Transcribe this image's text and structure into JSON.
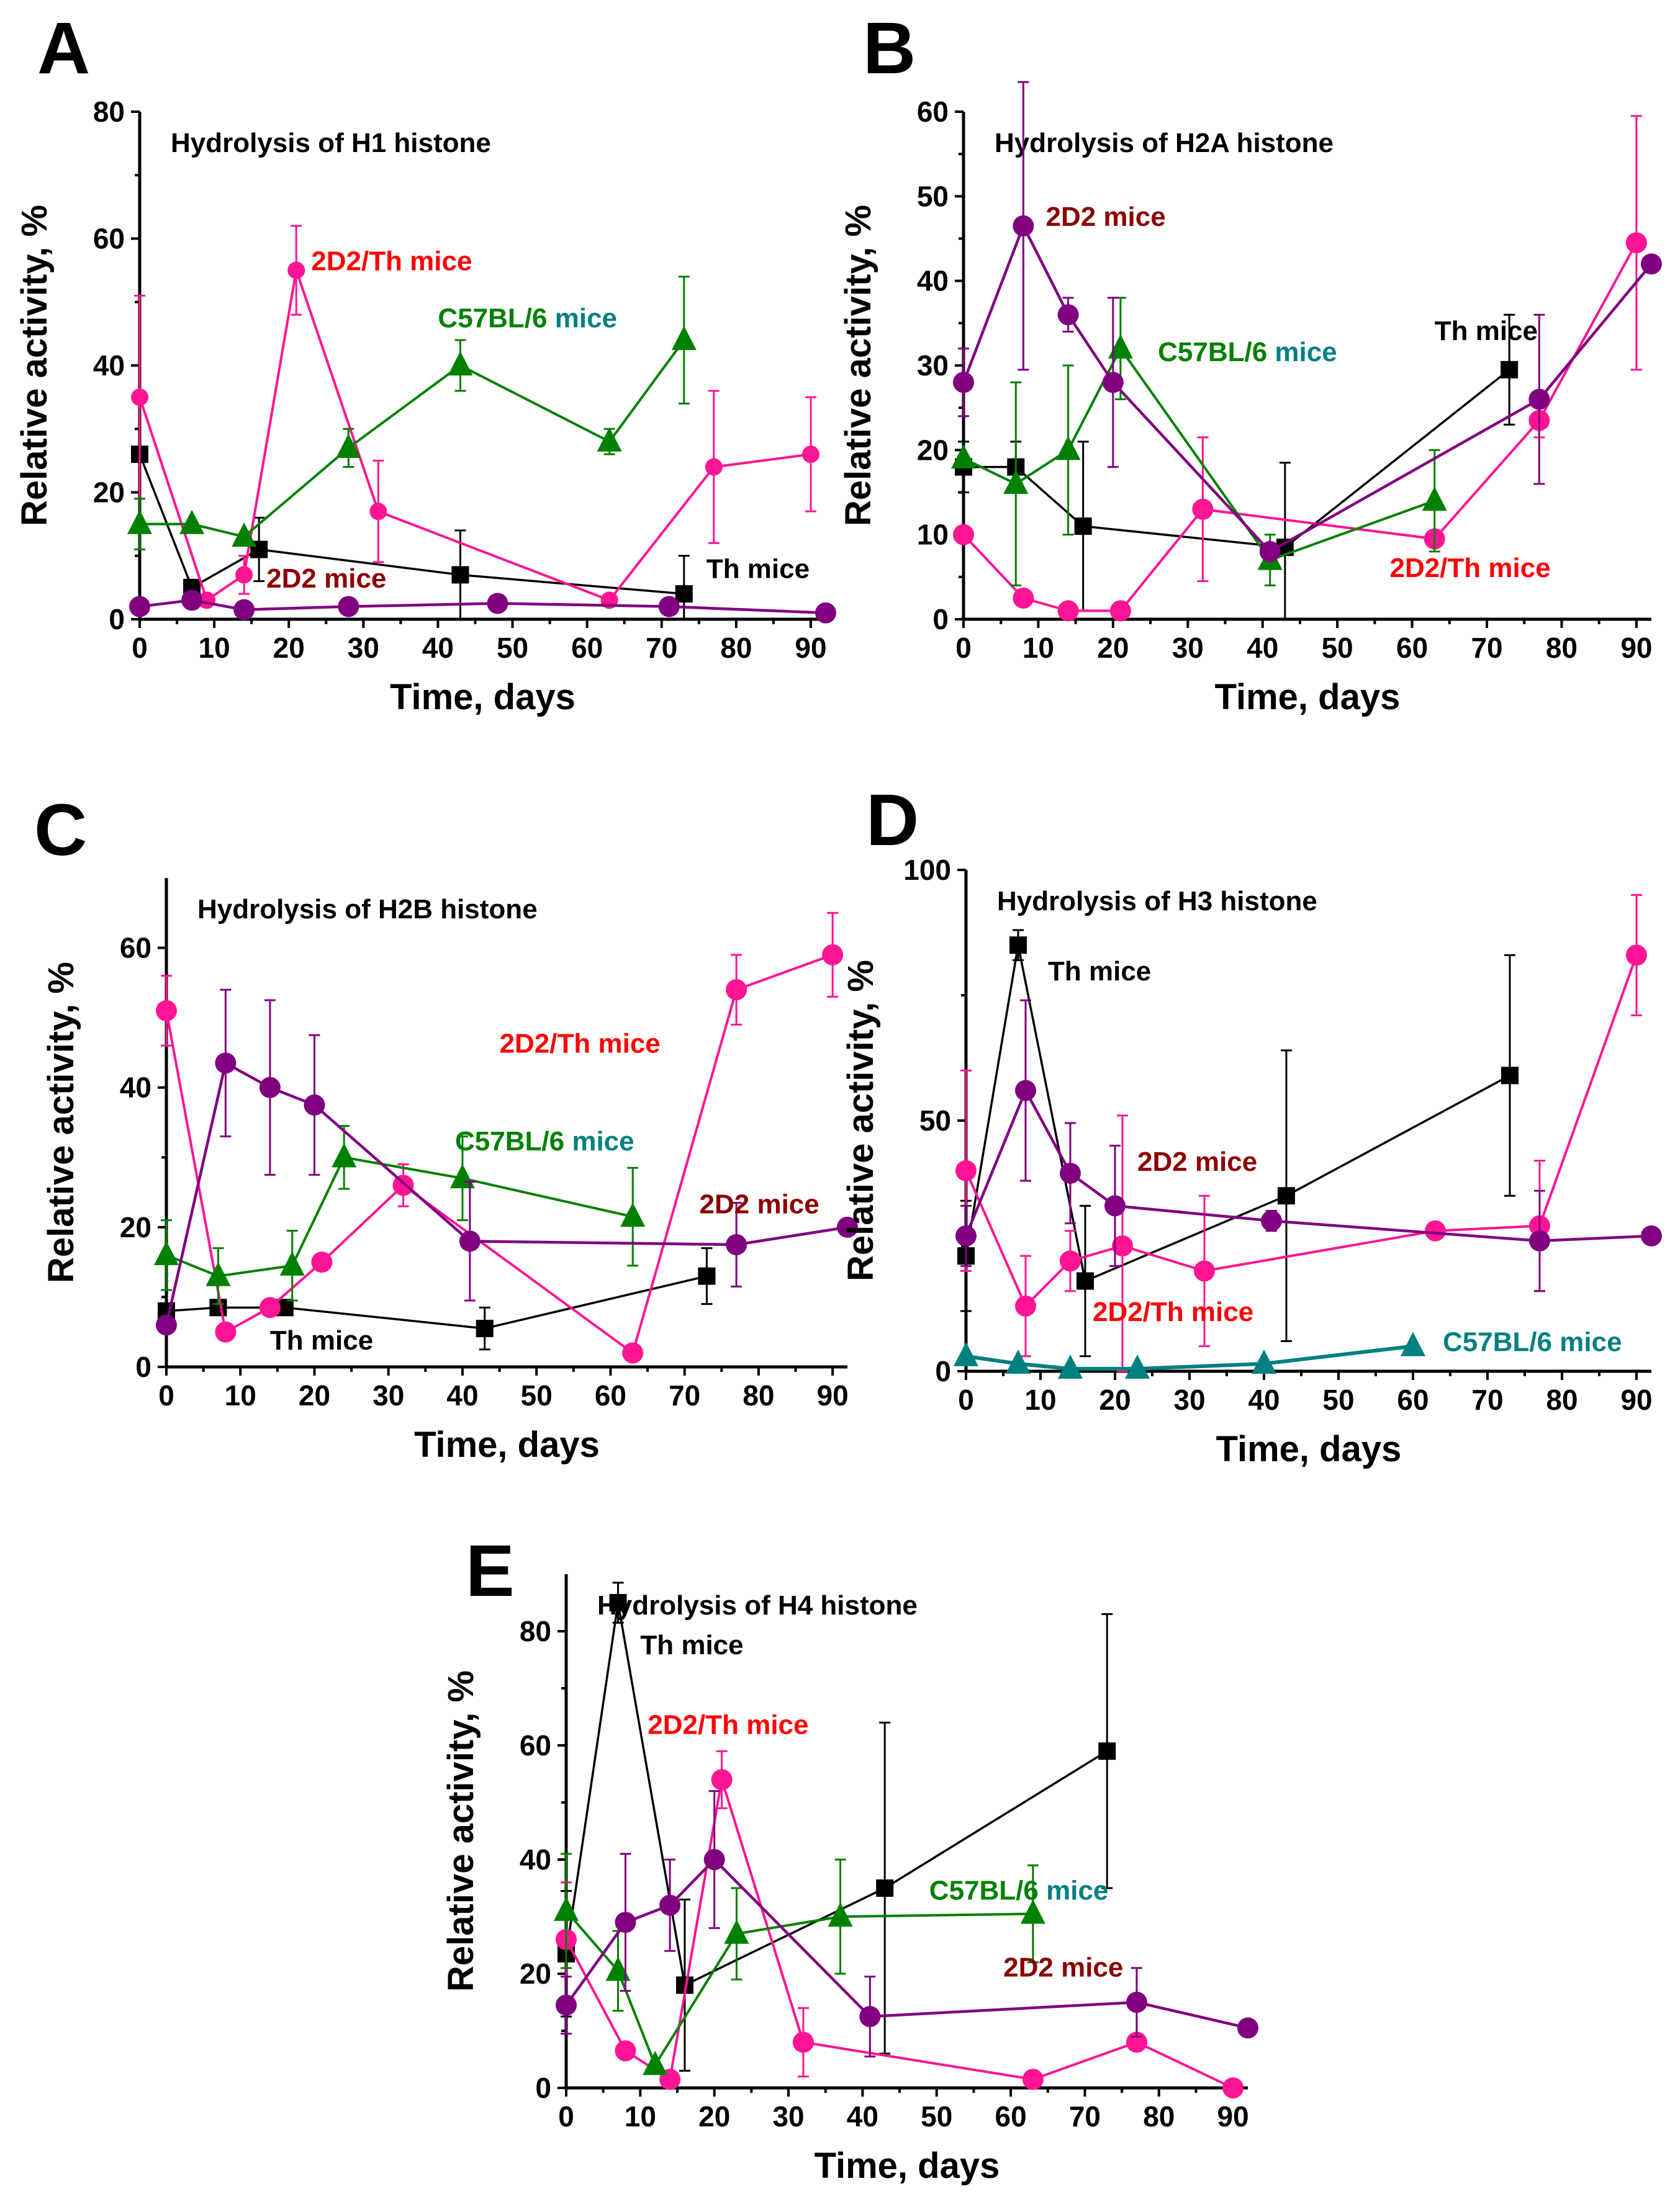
{
  "colors": {
    "th": "#000000",
    "d2th": "#ff1493",
    "d2": "#800080",
    "c57": "#008000",
    "c57_teal": "#008080",
    "label_2d2": "#8b0000",
    "label_2d2th": "#ff0000"
  },
  "chart_data": [
    {
      "type": "line",
      "panel": "A",
      "title": "Hydrolysis of H1 histone",
      "xlabel": "Time, days",
      "ylabel": "Relative activity, %",
      "xlim": [
        0,
        92
      ],
      "ylim": [
        0,
        80
      ],
      "xticks": [
        0,
        10,
        20,
        30,
        40,
        50,
        60,
        70,
        80,
        90
      ],
      "yticks": [
        0,
        20,
        40,
        60,
        80
      ],
      "series": [
        {
          "name": "Th mice",
          "key": "th",
          "marker": "square",
          "x": [
            0,
            7,
            16,
            43,
            73
          ],
          "y": [
            26,
            5,
            11,
            7,
            4
          ],
          "err": [
            0,
            0,
            5,
            7,
            6
          ]
        },
        {
          "name": "2D2/Th mice",
          "key": "d2th",
          "marker": "circle-small",
          "x": [
            0,
            9,
            14,
            21,
            32,
            63,
            77,
            90
          ],
          "y": [
            35,
            3,
            7,
            55,
            17,
            3,
            24,
            26
          ],
          "err": [
            16,
            0,
            3,
            7,
            8,
            0,
            12,
            9
          ]
        },
        {
          "name": "C57BL/6 mice",
          "key": "c57",
          "marker": "triangle",
          "x": [
            0,
            7,
            14,
            28,
            43,
            63,
            73
          ],
          "y": [
            15,
            15,
            13,
            27,
            40,
            28,
            44
          ],
          "err": [
            4,
            0,
            0,
            3,
            4,
            2,
            10
          ]
        },
        {
          "name": "2D2 mice",
          "key": "d2",
          "marker": "circle",
          "x": [
            0,
            7,
            14,
            28,
            48,
            71,
            92
          ],
          "y": [
            2,
            3,
            1.5,
            2,
            2.5,
            2,
            1
          ],
          "err": [
            0,
            0,
            0,
            0,
            0,
            0,
            0
          ]
        }
      ],
      "labels": [
        {
          "text": "2D2/Th mice",
          "key": "label_2d2th",
          "x": 23,
          "y": 55
        },
        {
          "text": "C57BL/6",
          "key": "c57",
          "x": 40,
          "y": 46,
          "extra": " mice",
          "extra_key": "c57_teal"
        },
        {
          "text": "2D2 mice",
          "key": "label_2d2",
          "x": 17,
          "y": 5
        },
        {
          "text": "Th mice",
          "key": "th",
          "x": 76,
          "y": 6.5
        }
      ]
    },
    {
      "type": "line",
      "panel": "B",
      "title": "Hydrolysis of H2A histone",
      "xlabel": "Time, days",
      "ylabel": "Relative activity, %",
      "xlim": [
        0,
        92
      ],
      "ylim": [
        0,
        60
      ],
      "xticks": [
        0,
        10,
        20,
        30,
        40,
        50,
        60,
        70,
        80,
        90
      ],
      "yticks": [
        0,
        10,
        20,
        30,
        40,
        50,
        60
      ],
      "series": [
        {
          "name": "Th mice",
          "key": "th",
          "marker": "square",
          "x": [
            0,
            7,
            16,
            43,
            73
          ],
          "y": [
            18,
            18,
            11,
            8.5,
            29.5
          ],
          "err": [
            3,
            3,
            10,
            10,
            6.5
          ]
        },
        {
          "name": "2D2/Th mice",
          "key": "d2th",
          "marker": "circle",
          "x": [
            0,
            8,
            14,
            21,
            32,
            63,
            77,
            90
          ],
          "y": [
            10,
            2.5,
            1,
            1,
            13,
            9.5,
            23.5,
            44.5
          ],
          "err": [
            0,
            0,
            0,
            0,
            8.5,
            0,
            2,
            15
          ]
        },
        {
          "name": "C57BL/6 mice",
          "key": "c57",
          "marker": "triangle",
          "x": [
            0,
            7,
            14,
            21,
            41,
            63
          ],
          "y": [
            19,
            16,
            20,
            32,
            7,
            14
          ],
          "err": [
            0,
            12,
            10,
            6,
            3,
            6
          ]
        },
        {
          "name": "2D2 mice",
          "key": "d2",
          "marker": "circle",
          "x": [
            0,
            8,
            14,
            20,
            41,
            77,
            92
          ],
          "y": [
            28,
            46.5,
            36,
            28,
            8,
            26,
            42
          ],
          "err": [
            4,
            17,
            2,
            10,
            0,
            10,
            0
          ]
        }
      ],
      "labels": [
        {
          "text": "2D2 mice",
          "key": "label_2d2",
          "x": 11,
          "y": 46.5
        },
        {
          "text": "Th mice",
          "key": "th",
          "x": 63,
          "y": 33
        },
        {
          "text": "C57BL/6",
          "key": "c57",
          "x": 26,
          "y": 30.5,
          "extra": " mice",
          "extra_key": "c57_teal"
        },
        {
          "text": "2D2/Th mice",
          "key": "label_2d2th",
          "x": 57,
          "y": 5
        }
      ]
    },
    {
      "type": "line",
      "panel": "C",
      "title": "Hydrolysis of H2B histone",
      "xlabel": "Time, days",
      "ylabel": "Relative activity, %",
      "xlim": [
        0,
        92
      ],
      "ylim": [
        0,
        70
      ],
      "xticks": [
        0,
        10,
        20,
        30,
        40,
        50,
        60,
        70,
        80,
        90
      ],
      "yticks": [
        0,
        20,
        40,
        60
      ],
      "series": [
        {
          "name": "Th mice",
          "key": "th",
          "marker": "square",
          "x": [
            0,
            7,
            16,
            43,
            73
          ],
          "y": [
            8,
            8.5,
            8.5,
            5.5,
            13
          ],
          "err": [
            0,
            0,
            0,
            3,
            4
          ]
        },
        {
          "name": "2D2/Th mice",
          "key": "d2th",
          "marker": "circle",
          "x": [
            0,
            8,
            14,
            21,
            32,
            63,
            77,
            90
          ],
          "y": [
            51,
            5,
            8.5,
            15,
            26,
            2,
            54,
            59
          ],
          "err": [
            5,
            0,
            0,
            0,
            3,
            0,
            5,
            6
          ]
        },
        {
          "name": "C57BL/6 mice",
          "key": "c57",
          "marker": "triangle",
          "x": [
            0,
            7,
            17,
            24,
            40,
            63
          ],
          "y": [
            16,
            13,
            14.5,
            30,
            27,
            21.5
          ],
          "err": [
            5,
            4,
            5,
            4.5,
            6,
            7
          ]
        },
        {
          "name": "2D2 mice",
          "key": "d2",
          "marker": "circle",
          "x": [
            0,
            8,
            14,
            20,
            41,
            77,
            92
          ],
          "y": [
            6,
            43.5,
            40,
            37.5,
            18,
            17.5,
            20
          ],
          "err": [
            0,
            10.5,
            12.5,
            10,
            8.5,
            6,
            0
          ]
        }
      ],
      "labels": [
        {
          "text": "2D2/Th mice",
          "key": "label_2d2th",
          "x": 45,
          "y": 45
        },
        {
          "text": "C57BL/6",
          "key": "c57",
          "x": 39,
          "y": 31,
          "extra": " mice",
          "extra_key": "c57_teal"
        },
        {
          "text": "2D2 mice",
          "key": "label_2d2",
          "x": 72,
          "y": 22
        },
        {
          "text": "Th mice",
          "key": "th",
          "x": 14,
          "y": 2.5
        }
      ]
    },
    {
      "type": "line",
      "panel": "D",
      "title": "Hydrolysis of H3 histone",
      "xlabel": "Time, days",
      "ylabel": "Relative activity, %",
      "xlim": [
        0,
        92
      ],
      "ylim": [
        0,
        100
      ],
      "xticks": [
        0,
        10,
        20,
        30,
        40,
        50,
        60,
        70,
        80,
        90
      ],
      "yticks": [
        0,
        50,
        100
      ],
      "series": [
        {
          "name": "Th mice",
          "key": "th",
          "marker": "square",
          "x": [
            0,
            7,
            16,
            43,
            73
          ],
          "y": [
            23,
            85,
            18,
            35,
            59
          ],
          "err": [
            11,
            3,
            15,
            29,
            24
          ]
        },
        {
          "name": "2D2/Th mice",
          "key": "d2th",
          "marker": "circle",
          "x": [
            0,
            8,
            14,
            21,
            32,
            63,
            77,
            90
          ],
          "y": [
            40,
            13,
            22,
            25,
            20,
            28,
            29,
            83
          ],
          "err": [
            20,
            10,
            6,
            26,
            15,
            0,
            13,
            12
          ]
        },
        {
          "name": "C57BL/6 mice",
          "key": "c57_teal",
          "marker": "triangle",
          "x": [
            0,
            7,
            14,
            23,
            40,
            60
          ],
          "y": [
            3,
            1.5,
            0.5,
            0.5,
            1.5,
            5
          ],
          "err": [
            0,
            0,
            0,
            0,
            0,
            0
          ]
        },
        {
          "name": "2D2 mice",
          "key": "d2",
          "marker": "circle",
          "x": [
            0,
            8,
            14,
            20,
            41,
            77,
            92
          ],
          "y": [
            27,
            56,
            39.5,
            33,
            30,
            26,
            27
          ],
          "err": [
            6,
            18,
            10,
            12,
            2,
            10,
            0
          ]
        }
      ],
      "labels": [
        {
          "text": "Th mice",
          "key": "th",
          "x": 11,
          "y": 78
        },
        {
          "text": "2D2 mice",
          "key": "label_2d2",
          "x": 23,
          "y": 40
        },
        {
          "text": "2D2/Th mice",
          "key": "label_2d2th",
          "x": 17,
          "y": 10
        },
        {
          "text": "C57BL/6 mice",
          "key": "c57_teal",
          "x": 64,
          "y": 4
        }
      ]
    },
    {
      "type": "line",
      "panel": "E",
      "title": "Hydrolysis of H4 histone",
      "xlabel": "Time, days",
      "ylabel": "Relative activity, %",
      "xlim": [
        0,
        92
      ],
      "ylim": [
        0,
        90
      ],
      "xticks": [
        0,
        10,
        20,
        30,
        40,
        50,
        60,
        70,
        80,
        90
      ],
      "yticks": [
        0,
        20,
        40,
        60,
        80
      ],
      "series": [
        {
          "name": "Th mice",
          "key": "th",
          "marker": "square",
          "x": [
            0,
            7,
            16,
            43,
            73
          ],
          "y": [
            23.5,
            85,
            18,
            35,
            59
          ],
          "err": [
            11,
            3.5,
            15,
            29,
            24
          ]
        },
        {
          "name": "2D2/Th mice",
          "key": "d2th",
          "marker": "circle",
          "x": [
            0,
            8,
            14,
            21,
            32,
            63,
            77,
            90
          ],
          "y": [
            26,
            6.5,
            1.5,
            54,
            8,
            1.5,
            8,
            0
          ],
          "err": [
            10,
            0,
            0,
            5,
            6,
            0,
            0,
            0
          ]
        },
        {
          "name": "C57BL/6 mice",
          "key": "c57",
          "marker": "triangle",
          "x": [
            0,
            7,
            12,
            23,
            37,
            63
          ],
          "y": [
            31,
            20.5,
            4,
            27,
            30,
            30.5
          ],
          "err": [
            10,
            7,
            0,
            8,
            10,
            8.5
          ]
        },
        {
          "name": "2D2 mice",
          "key": "d2",
          "marker": "circle",
          "x": [
            0,
            8,
            14,
            20,
            41,
            77,
            92
          ],
          "y": [
            14.5,
            29,
            32,
            40,
            12.5,
            15,
            10.5
          ],
          "err": [
            5,
            12,
            8,
            12,
            7,
            6,
            0
          ]
        }
      ],
      "labels": [
        {
          "text": "Th mice",
          "key": "th",
          "x": 10,
          "y": 76
        },
        {
          "text": "2D2/Th mice",
          "key": "label_2d2th",
          "x": 11,
          "y": 62
        },
        {
          "text": "C57BL/6",
          "key": "c57",
          "x": 49,
          "y": 33,
          "extra": " mice",
          "extra_key": "c57_teal"
        },
        {
          "text": "2D2 mice",
          "key": "label_2d2",
          "x": 59,
          "y": 19.5
        }
      ]
    }
  ]
}
